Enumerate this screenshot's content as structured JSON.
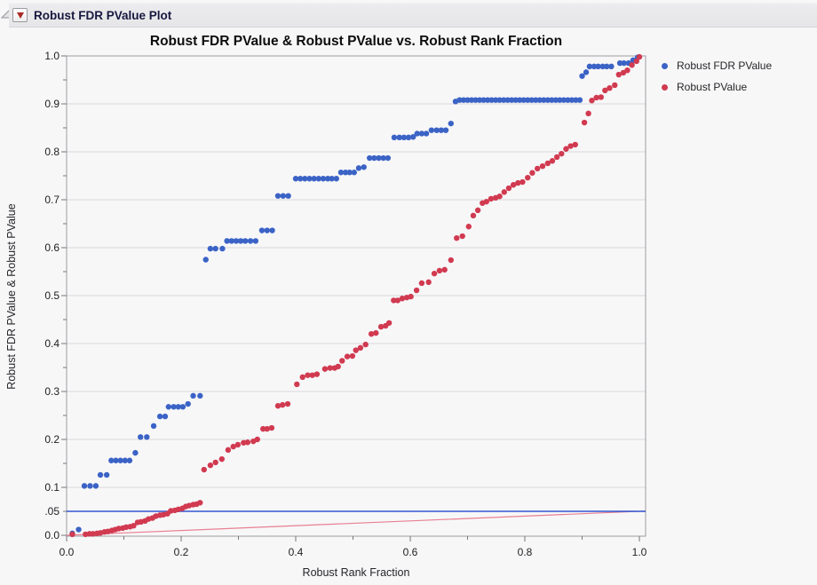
{
  "header": {
    "title": "Robust FDR PValue Plot"
  },
  "icons": {
    "outline_collapse": "gray-open-triangle",
    "menu_button": "red-triangle"
  },
  "chart_data": {
    "type": "scatter",
    "title": "Robust FDR PValue & Robust PValue vs. Robust Rank Fraction",
    "xlabel": "Robust Rank Fraction",
    "ylabel": "Robust FDR PValue & Robust PValue",
    "xlim": [
      0,
      1
    ],
    "ylim": [
      0,
      1
    ],
    "grid": "horizontal-only",
    "legend_position": "top-right",
    "x_ticks": [
      {
        "v": 0.0,
        "t": "0.0"
      },
      {
        "v": 0.2,
        "t": "0.2"
      },
      {
        "v": 0.4,
        "t": "0.4"
      },
      {
        "v": 0.6,
        "t": "0.6"
      },
      {
        "v": 0.8,
        "t": "0.8"
      },
      {
        "v": 1.0,
        "t": "1.0"
      }
    ],
    "x_minor_ticks": [
      0.1,
      0.3,
      0.5,
      0.7,
      0.9
    ],
    "y_ticks": [
      {
        "v": 1.0,
        "t": "1.0"
      },
      {
        "v": 0.9,
        "t": "0.9"
      },
      {
        "v": 0.8,
        "t": "0.8"
      },
      {
        "v": 0.7,
        "t": "0.7"
      },
      {
        "v": 0.6,
        "t": "0.6"
      },
      {
        "v": 0.5,
        "t": "0.5"
      },
      {
        "v": 0.4,
        "t": "0.4"
      },
      {
        "v": 0.3,
        "t": "0.3"
      },
      {
        "v": 0.2,
        "t": "0.2"
      },
      {
        "v": 0.1,
        "t": "0.1"
      },
      {
        "v": 0.05,
        "t": ".05",
        "special": true
      },
      {
        "v": 0.0,
        "t": "0.0"
      }
    ],
    "y_minor_ticks": [
      0.15,
      0.25,
      0.35,
      0.45,
      0.55,
      0.65,
      0.75,
      0.85,
      0.95
    ],
    "reference_lines": [
      {
        "kind": "horizontal",
        "y": 0.05,
        "color": "#3055d0"
      },
      {
        "kind": "segment",
        "from": [
          0,
          0
        ],
        "to": [
          1,
          0.05
        ],
        "color": "#e87f90"
      }
    ],
    "style": {
      "grid_color": "#d9d9dc",
      "frame_color": "#9c9ca2",
      "tick_color": "#77777c",
      "special_tick_label_color": "#3055d0",
      "point_radius": 3.2
    },
    "series": [
      {
        "name": "Robust FDR PValue",
        "color": "#3b63c6",
        "points": [
          [
            0.01,
            0.004
          ],
          [
            0.021,
            0.012
          ],
          [
            0.031,
            0.103
          ],
          [
            0.041,
            0.103
          ],
          [
            0.051,
            0.103
          ],
          [
            0.059,
            0.126
          ],
          [
            0.07,
            0.126
          ],
          [
            0.078,
            0.156
          ],
          [
            0.086,
            0.156
          ],
          [
            0.094,
            0.156
          ],
          [
            0.102,
            0.156
          ],
          [
            0.11,
            0.156
          ],
          [
            0.12,
            0.172
          ],
          [
            0.129,
            0.205
          ],
          [
            0.14,
            0.205
          ],
          [
            0.152,
            0.228
          ],
          [
            0.163,
            0.248
          ],
          [
            0.172,
            0.248
          ],
          [
            0.178,
            0.268
          ],
          [
            0.187,
            0.268
          ],
          [
            0.195,
            0.268
          ],
          [
            0.203,
            0.268
          ],
          [
            0.212,
            0.274
          ],
          [
            0.221,
            0.291
          ],
          [
            0.233,
            0.291
          ],
          [
            0.243,
            0.575
          ],
          [
            0.251,
            0.598
          ],
          [
            0.26,
            0.598
          ],
          [
            0.272,
            0.598
          ],
          [
            0.28,
            0.614
          ],
          [
            0.288,
            0.614
          ],
          [
            0.296,
            0.614
          ],
          [
            0.304,
            0.614
          ],
          [
            0.312,
            0.614
          ],
          [
            0.321,
            0.614
          ],
          [
            0.33,
            0.614
          ],
          [
            0.341,
            0.636
          ],
          [
            0.35,
            0.636
          ],
          [
            0.359,
            0.636
          ],
          [
            0.369,
            0.708
          ],
          [
            0.378,
            0.708
          ],
          [
            0.387,
            0.708
          ],
          [
            0.4,
            0.744
          ],
          [
            0.408,
            0.744
          ],
          [
            0.416,
            0.744
          ],
          [
            0.424,
            0.744
          ],
          [
            0.432,
            0.744
          ],
          [
            0.44,
            0.744
          ],
          [
            0.448,
            0.744
          ],
          [
            0.456,
            0.744
          ],
          [
            0.463,
            0.744
          ],
          [
            0.471,
            0.744
          ],
          [
            0.479,
            0.757
          ],
          [
            0.487,
            0.757
          ],
          [
            0.494,
            0.757
          ],
          [
            0.502,
            0.757
          ],
          [
            0.51,
            0.766
          ],
          [
            0.519,
            0.768
          ],
          [
            0.529,
            0.787
          ],
          [
            0.537,
            0.787
          ],
          [
            0.545,
            0.787
          ],
          [
            0.553,
            0.787
          ],
          [
            0.561,
            0.787
          ],
          [
            0.572,
            0.83
          ],
          [
            0.581,
            0.83
          ],
          [
            0.589,
            0.83
          ],
          [
            0.597,
            0.83
          ],
          [
            0.605,
            0.831
          ],
          [
            0.612,
            0.838
          ],
          [
            0.62,
            0.838
          ],
          [
            0.628,
            0.838
          ],
          [
            0.637,
            0.845
          ],
          [
            0.646,
            0.845
          ],
          [
            0.654,
            0.845
          ],
          [
            0.662,
            0.845
          ],
          [
            0.671,
            0.859
          ],
          [
            0.679,
            0.905
          ],
          [
            0.686,
            0.908
          ],
          [
            0.693,
            0.908
          ],
          [
            0.7,
            0.908
          ],
          [
            0.707,
            0.908
          ],
          [
            0.714,
            0.908
          ],
          [
            0.721,
            0.908
          ],
          [
            0.728,
            0.908
          ],
          [
            0.735,
            0.908
          ],
          [
            0.742,
            0.908
          ],
          [
            0.749,
            0.908
          ],
          [
            0.756,
            0.908
          ],
          [
            0.763,
            0.908
          ],
          [
            0.77,
            0.908
          ],
          [
            0.777,
            0.908
          ],
          [
            0.784,
            0.908
          ],
          [
            0.791,
            0.908
          ],
          [
            0.798,
            0.908
          ],
          [
            0.805,
            0.908
          ],
          [
            0.812,
            0.908
          ],
          [
            0.819,
            0.908
          ],
          [
            0.826,
            0.908
          ],
          [
            0.833,
            0.908
          ],
          [
            0.84,
            0.908
          ],
          [
            0.847,
            0.908
          ],
          [
            0.854,
            0.908
          ],
          [
            0.861,
            0.908
          ],
          [
            0.868,
            0.908
          ],
          [
            0.875,
            0.908
          ],
          [
            0.882,
            0.908
          ],
          [
            0.889,
            0.908
          ],
          [
            0.896,
            0.908
          ],
          [
            0.9,
            0.958
          ],
          [
            0.907,
            0.966
          ],
          [
            0.913,
            0.978
          ],
          [
            0.921,
            0.978
          ],
          [
            0.928,
            0.978
          ],
          [
            0.936,
            0.978
          ],
          [
            0.943,
            0.978
          ],
          [
            0.951,
            0.978
          ],
          [
            0.966,
            0.985
          ],
          [
            0.973,
            0.985
          ],
          [
            0.981,
            0.985
          ],
          [
            0.989,
            0.991
          ],
          [
            0.997,
            0.997
          ]
        ]
      },
      {
        "name": "Robust PValue",
        "color": "#d13a50",
        "points": [
          [
            0.01,
            0.002
          ],
          [
            0.033,
            0.002
          ],
          [
            0.04,
            0.003
          ],
          [
            0.046,
            0.003
          ],
          [
            0.053,
            0.004
          ],
          [
            0.059,
            0.005
          ],
          [
            0.066,
            0.007
          ],
          [
            0.072,
            0.008
          ],
          [
            0.079,
            0.01
          ],
          [
            0.085,
            0.012
          ],
          [
            0.091,
            0.014
          ],
          [
            0.098,
            0.015
          ],
          [
            0.104,
            0.017
          ],
          [
            0.111,
            0.018
          ],
          [
            0.117,
            0.02
          ],
          [
            0.124,
            0.027
          ],
          [
            0.13,
            0.028
          ],
          [
            0.137,
            0.03
          ],
          [
            0.143,
            0.034
          ],
          [
            0.15,
            0.036
          ],
          [
            0.156,
            0.04
          ],
          [
            0.163,
            0.042
          ],
          [
            0.169,
            0.043
          ],
          [
            0.176,
            0.045
          ],
          [
            0.182,
            0.051
          ],
          [
            0.189,
            0.052
          ],
          [
            0.195,
            0.054
          ],
          [
            0.202,
            0.056
          ],
          [
            0.208,
            0.06
          ],
          [
            0.214,
            0.062
          ],
          [
            0.221,
            0.064
          ],
          [
            0.227,
            0.065
          ],
          [
            0.233,
            0.068
          ],
          [
            0.24,
            0.137
          ],
          [
            0.251,
            0.146
          ],
          [
            0.26,
            0.152
          ],
          [
            0.271,
            0.159
          ],
          [
            0.282,
            0.178
          ],
          [
            0.291,
            0.185
          ],
          [
            0.299,
            0.189
          ],
          [
            0.309,
            0.193
          ],
          [
            0.316,
            0.194
          ],
          [
            0.326,
            0.196
          ],
          [
            0.333,
            0.2
          ],
          [
            0.343,
            0.222
          ],
          [
            0.35,
            0.222
          ],
          [
            0.358,
            0.224
          ],
          [
            0.369,
            0.27
          ],
          [
            0.377,
            0.272
          ],
          [
            0.386,
            0.274
          ],
          [
            0.402,
            0.315
          ],
          [
            0.412,
            0.33
          ],
          [
            0.421,
            0.334
          ],
          [
            0.429,
            0.334
          ],
          [
            0.437,
            0.336
          ],
          [
            0.451,
            0.347
          ],
          [
            0.46,
            0.349
          ],
          [
            0.468,
            0.349
          ],
          [
            0.474,
            0.352
          ],
          [
            0.481,
            0.364
          ],
          [
            0.49,
            0.373
          ],
          [
            0.499,
            0.374
          ],
          [
            0.505,
            0.386
          ],
          [
            0.513,
            0.391
          ],
          [
            0.522,
            0.398
          ],
          [
            0.532,
            0.42
          ],
          [
            0.54,
            0.422
          ],
          [
            0.549,
            0.435
          ],
          [
            0.557,
            0.437
          ],
          [
            0.563,
            0.443
          ],
          [
            0.571,
            0.49
          ],
          [
            0.578,
            0.49
          ],
          [
            0.586,
            0.494
          ],
          [
            0.594,
            0.496
          ],
          [
            0.601,
            0.498
          ],
          [
            0.611,
            0.511
          ],
          [
            0.62,
            0.526
          ],
          [
            0.632,
            0.528
          ],
          [
            0.642,
            0.546
          ],
          [
            0.651,
            0.552
          ],
          [
            0.66,
            0.554
          ],
          [
            0.671,
            0.574
          ],
          [
            0.681,
            0.62
          ],
          [
            0.691,
            0.624
          ],
          [
            0.702,
            0.644
          ],
          [
            0.71,
            0.667
          ],
          [
            0.718,
            0.678
          ],
          [
            0.726,
            0.693
          ],
          [
            0.733,
            0.696
          ],
          [
            0.741,
            0.702
          ],
          [
            0.749,
            0.704
          ],
          [
            0.756,
            0.707
          ],
          [
            0.764,
            0.716
          ],
          [
            0.772,
            0.724
          ],
          [
            0.78,
            0.731
          ],
          [
            0.788,
            0.735
          ],
          [
            0.796,
            0.737
          ],
          [
            0.805,
            0.746
          ],
          [
            0.813,
            0.756
          ],
          [
            0.822,
            0.765
          ],
          [
            0.831,
            0.77
          ],
          [
            0.84,
            0.776
          ],
          [
            0.848,
            0.781
          ],
          [
            0.856,
            0.789
          ],
          [
            0.864,
            0.796
          ],
          [
            0.872,
            0.806
          ],
          [
            0.88,
            0.812
          ],
          [
            0.888,
            0.815
          ],
          [
            0.904,
            0.861
          ],
          [
            0.911,
            0.88
          ],
          [
            0.917,
            0.907
          ],
          [
            0.925,
            0.913
          ],
          [
            0.933,
            0.914
          ],
          [
            0.94,
            0.928
          ],
          [
            0.948,
            0.933
          ],
          [
            0.957,
            0.939
          ],
          [
            0.964,
            0.961
          ],
          [
            0.972,
            0.965
          ],
          [
            0.979,
            0.97
          ],
          [
            0.987,
            0.981
          ],
          [
            0.995,
            0.989
          ],
          [
            1.0,
            0.998
          ]
        ]
      }
    ]
  }
}
